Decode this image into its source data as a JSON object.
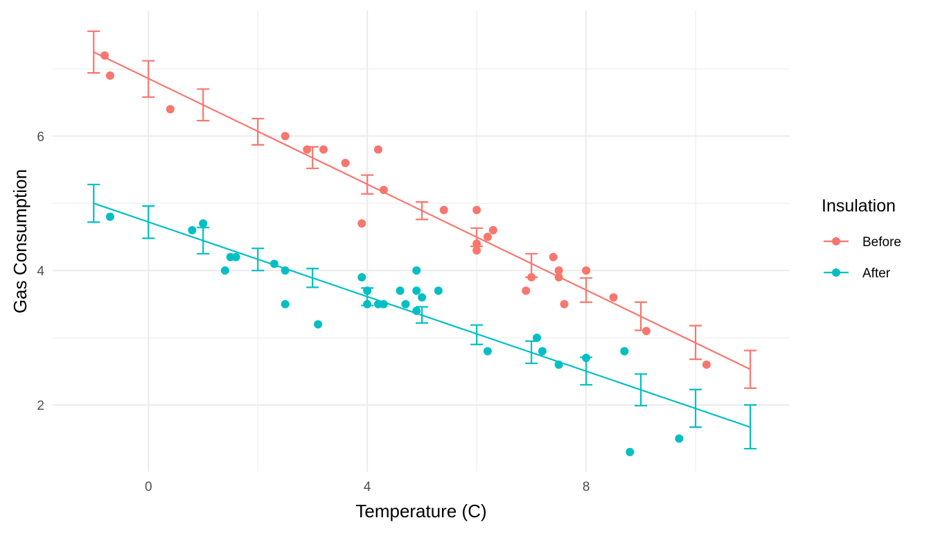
{
  "chart_data": {
    "type": "scatter",
    "title": "",
    "xlabel": "Temperature (C)",
    "ylabel": "Gas Consumption",
    "xlim": [
      -1.75,
      11.72
    ],
    "ylim": [
      1.01,
      7.87
    ],
    "x_ticks": [
      0,
      4,
      8
    ],
    "y_ticks": [
      2,
      4,
      6
    ],
    "x_tick_labels": [
      "0",
      "4",
      "8"
    ],
    "y_tick_labels": [
      "2",
      "4",
      "6"
    ],
    "grid": true,
    "legend": {
      "title": "Insulation",
      "position": "right"
    },
    "series": [
      {
        "name": "Before",
        "color": "#F8766D",
        "points": {
          "x": [
            -0.8,
            -0.7,
            0.4,
            2.5,
            2.9,
            3.2,
            3.6,
            3.9,
            4.2,
            4.3,
            5.4,
            6.0,
            6.0,
            6.0,
            6.2,
            6.3,
            6.9,
            7.0,
            7.4,
            7.5,
            7.5,
            7.6,
            8.0,
            8.5,
            9.1,
            10.2
          ],
          "y": [
            7.2,
            6.9,
            6.4,
            6.0,
            5.8,
            5.8,
            5.6,
            4.7,
            5.8,
            5.2,
            4.9,
            4.9,
            4.3,
            4.4,
            4.5,
            4.6,
            3.7,
            3.9,
            4.2,
            4.0,
            3.9,
            3.5,
            4.0,
            3.6,
            3.1,
            2.6
          ]
        },
        "fit_line": {
          "x": [
            -1,
            11
          ],
          "y": [
            7.25,
            2.53
          ]
        },
        "error_bars": {
          "x": [
            -1,
            0,
            1,
            2,
            3,
            4,
            5,
            6,
            7,
            8,
            9,
            10,
            11
          ],
          "upper": [
            7.56,
            7.12,
            6.7,
            6.26,
            5.84,
            5.42,
            5.02,
            4.63,
            4.25,
            3.89,
            3.53,
            3.18,
            2.81
          ],
          "lower": [
            6.94,
            6.58,
            6.23,
            5.87,
            5.52,
            5.14,
            4.76,
            4.36,
            3.9,
            3.53,
            3.11,
            2.68,
            2.25
          ]
        }
      },
      {
        "name": "After",
        "color": "#00BFC4",
        "points": {
          "x": [
            -0.7,
            0.8,
            1.0,
            1.4,
            1.5,
            1.6,
            2.3,
            2.5,
            2.5,
            3.1,
            3.9,
            4.0,
            4.0,
            4.2,
            4.3,
            4.6,
            4.7,
            4.9,
            4.9,
            4.9,
            5.0,
            5.3,
            6.2,
            7.1,
            7.2,
            7.5,
            8.0,
            8.7,
            8.8,
            9.7
          ],
          "y": [
            4.8,
            4.6,
            4.7,
            4.0,
            4.2,
            4.2,
            4.1,
            4.0,
            3.5,
            3.2,
            3.9,
            3.5,
            3.7,
            3.5,
            3.5,
            3.7,
            3.5,
            3.4,
            3.7,
            4.0,
            3.6,
            3.7,
            2.8,
            3.0,
            2.8,
            2.6,
            2.7,
            2.8,
            1.3,
            1.5
          ]
        },
        "fit_line": {
          "x": [
            -1,
            11
          ],
          "y": [
            5.0,
            1.67
          ]
        },
        "error_bars": {
          "x": [
            -1,
            0,
            1,
            2,
            3,
            4,
            5,
            6,
            7,
            8,
            9,
            10,
            11
          ],
          "upper": [
            5.28,
            4.96,
            4.64,
            4.33,
            4.03,
            3.74,
            3.46,
            3.19,
            2.95,
            2.71,
            2.46,
            2.23,
            2.0
          ],
          "lower": [
            4.72,
            4.48,
            4.25,
            4.0,
            3.75,
            3.48,
            3.22,
            2.9,
            2.62,
            2.3,
            1.99,
            1.67,
            1.35
          ]
        }
      }
    ]
  }
}
